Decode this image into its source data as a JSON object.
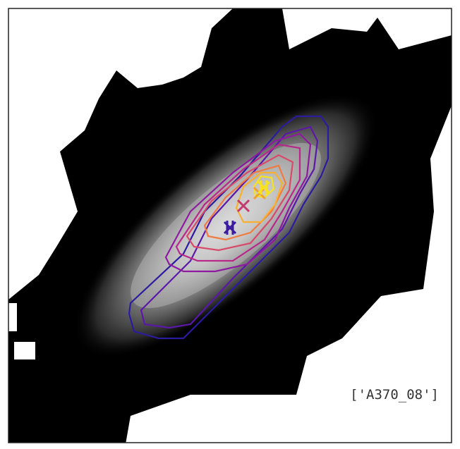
{
  "label": "['A370_08']"
}
